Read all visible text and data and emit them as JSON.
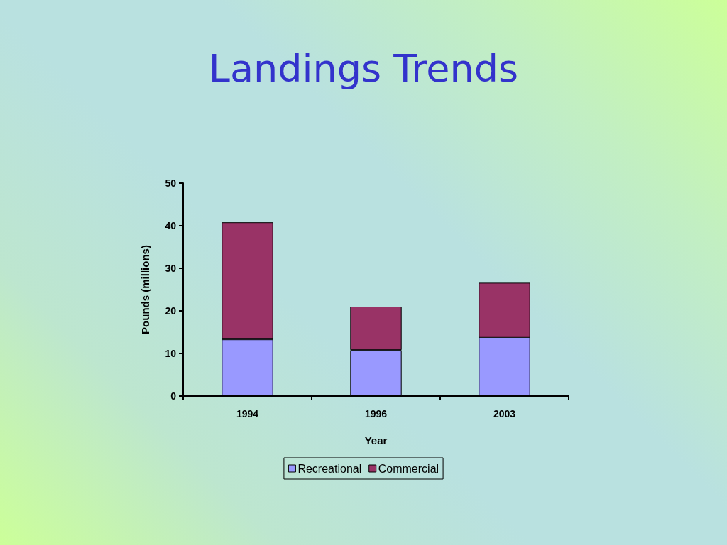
{
  "chart_data": {
    "type": "bar",
    "title": "Landings Trends",
    "xlabel": "Year",
    "ylabel": "Pounds (millions)",
    "categories": [
      "1994",
      "1996",
      "2003"
    ],
    "series": [
      {
        "name": "Recreational",
        "color": "#9999ff",
        "values": [
          13.3,
          10.8,
          13.7
        ]
      },
      {
        "name": "Commercial",
        "color": "#993366",
        "values": [
          27.5,
          10.2,
          12.9
        ]
      }
    ],
    "stacked": true,
    "ylim": [
      0,
      50
    ],
    "yticks": [
      0,
      10,
      20,
      30,
      40,
      50
    ],
    "legend": "bottom"
  }
}
